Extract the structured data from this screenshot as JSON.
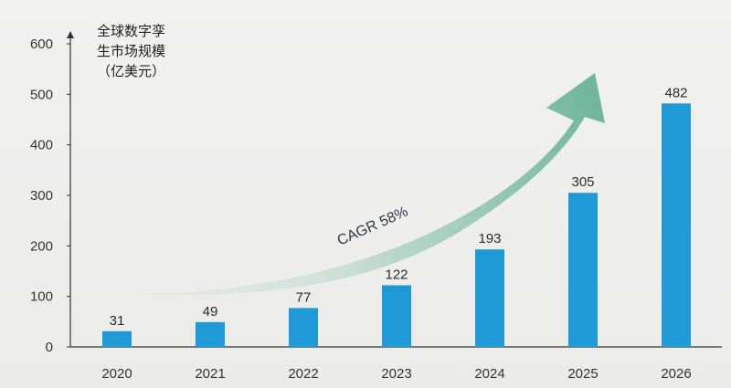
{
  "chart_data": {
    "type": "bar",
    "categories": [
      "2020",
      "2021",
      "2022",
      "2023",
      "2024",
      "2025",
      "2026"
    ],
    "values": [
      31,
      49,
      77,
      122,
      193,
      305,
      482
    ],
    "ylabel": "全球数字孪\n生市场规模\n（亿美元）",
    "ylim": [
      0,
      600
    ],
    "yticks": [
      0,
      100,
      200,
      300,
      400,
      500,
      600
    ],
    "annotation": "CAGR 58%",
    "grid": false,
    "colors": {
      "bar": "#1f9ad6",
      "arrow": "#5faf92",
      "axis": "#333333"
    }
  }
}
